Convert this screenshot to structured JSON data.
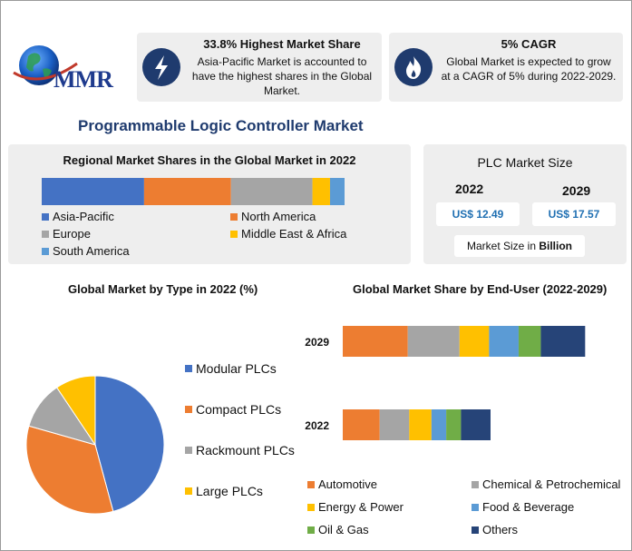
{
  "logo": {
    "text": "MMR"
  },
  "highlight1": {
    "title": "33.8% Highest Market Share",
    "text": "Asia-Pacific Market is accounted to have the highest shares in the Global Market.",
    "icon": "lightning-icon"
  },
  "highlight2": {
    "title": "5% CAGR",
    "text": "Global Market is expected to grow at a CAGR of 5% during 2022-2029.",
    "icon": "flame-icon"
  },
  "main_title": "Programmable Logic Controller Market",
  "colors": {
    "navy": "#1f3b6e",
    "blue": "#4472c4",
    "orange": "#ed7d31",
    "gray": "#a5a5a5",
    "yellow": "#ffc000",
    "lightblue": "#5b9bd5",
    "green": "#70ad47",
    "darknavy": "#264478"
  },
  "market_size": {
    "title": "PLC Market Size",
    "year1": "2022",
    "value1": "US$ 12.49",
    "year2": "2029",
    "value2": "US$ 17.57",
    "unit_prefix": "Market Size in ",
    "unit": "Billion"
  },
  "chart_data": [
    {
      "type": "bar",
      "title": "Regional Market Shares in the Global Market in 2022",
      "orientation": "horizontal-stacked",
      "series": [
        {
          "name": "Asia-Pacific",
          "value": 33.8,
          "color": "#4472c4"
        },
        {
          "name": "North America",
          "value": 28.7,
          "color": "#ed7d31"
        },
        {
          "name": "Europe",
          "value": 26.9,
          "color": "#a5a5a5"
        },
        {
          "name": "Middle East & Africa",
          "value": 5.8,
          "color": "#ffc000"
        },
        {
          "name": "South America",
          "value": 4.8,
          "color": "#5b9bd5"
        }
      ]
    },
    {
      "type": "pie",
      "title": "Global Market by Type in 2022 (%)",
      "series": [
        {
          "name": "Modular PLCs",
          "value": 45.8,
          "color": "#4472c4"
        },
        {
          "name": "Compact PLCs",
          "value": 33.6,
          "color": "#ed7d31"
        },
        {
          "name": "Rackmount PLCs",
          "value": 11.2,
          "color": "#a5a5a5"
        },
        {
          "name": "Large PLCs",
          "value": 9.4,
          "color": "#ffc000"
        }
      ]
    },
    {
      "type": "bar",
      "title": "Global Market Share by End-User (2022-2029)",
      "orientation": "horizontal-stacked",
      "categories": [
        "2029",
        "2022"
      ],
      "series": [
        {
          "name": "Automotive",
          "values": [
            4.4,
            2.5
          ],
          "color": "#ed7d31"
        },
        {
          "name": "Chemical & Petrochemical",
          "values": [
            3.5,
            2.0
          ],
          "color": "#a5a5a5"
        },
        {
          "name": "Energy & Power",
          "values": [
            2.0,
            1.5
          ],
          "color": "#ffc000"
        },
        {
          "name": "Food & Beverage",
          "values": [
            2.0,
            1.0
          ],
          "color": "#5b9bd5"
        },
        {
          "name": "Oil & Gas",
          "values": [
            1.5,
            1.0
          ],
          "color": "#70ad47"
        },
        {
          "name": "Others",
          "values": [
            3.0,
            2.0
          ],
          "color": "#264478"
        }
      ]
    }
  ]
}
